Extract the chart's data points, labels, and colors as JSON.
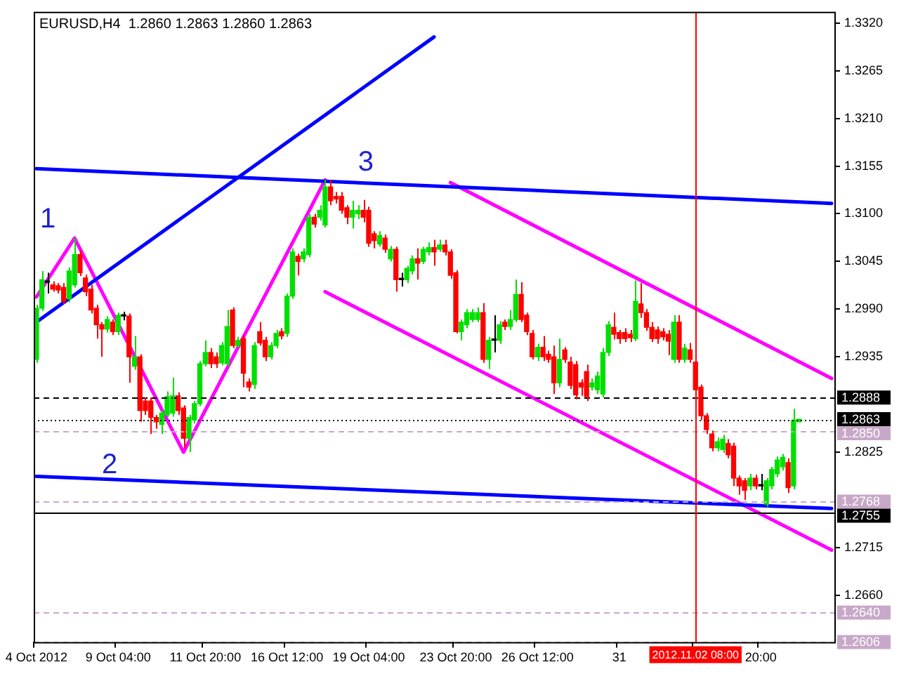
{
  "chart_data": {
    "type": "candlestick",
    "title": "EURUSD,H4  1.2860 1.2863 1.2860 1.2863",
    "categories": [
      "4 Oct 2012",
      null,
      null,
      null,
      null,
      null,
      null,
      null,
      null,
      null,
      null,
      null,
      null,
      null,
      null,
      "9 Oct 04:00",
      null,
      null,
      null,
      null,
      null,
      null,
      null,
      null,
      null,
      null,
      null,
      null,
      null,
      null,
      null,
      "11 Oct 20:00",
      null,
      null,
      null,
      null,
      null,
      null,
      null,
      null,
      null,
      null,
      null,
      null,
      null,
      null,
      "16 Oct 12:00",
      null,
      null,
      null,
      null,
      null,
      null,
      null,
      null,
      null,
      null,
      null,
      null,
      null,
      null,
      "19 Oct 04:00",
      null,
      null,
      null,
      null,
      null,
      null,
      null,
      null,
      null,
      null,
      null,
      null,
      null,
      null,
      null,
      "23 Oct 20:00",
      null,
      null,
      null,
      null,
      null,
      null,
      null,
      null,
      null,
      null,
      null,
      null,
      null,
      null,
      "26 Oct 12:00",
      null,
      null,
      null,
      null,
      null,
      null,
      null,
      null,
      null,
      null,
      null,
      null,
      null,
      null,
      "31",
      null,
      null,
      null,
      null,
      null,
      null,
      null,
      null,
      null,
      null,
      null,
      null,
      null,
      "2012.11.02 08:00",
      null,
      null,
      null,
      null,
      null,
      null,
      null,
      null,
      null,
      null,
      null,
      "20:00",
      null,
      null,
      null,
      null,
      null,
      null,
      null,
      null,
      null,
      null,
      null,
      null,
      null
    ],
    "ohlc": [
      [
        1.2932,
        1.2995,
        1.2928,
        1.2991
      ],
      [
        1.2991,
        1.3034,
        1.2988,
        1.3024
      ],
      [
        1.3021,
        1.3032,
        1.3008,
        1.3021
      ],
      [
        1.3018,
        1.3022,
        1.301,
        1.3013
      ],
      [
        1.3017,
        1.302,
        1.3008,
        1.3012
      ],
      [
        1.3015,
        1.302,
        1.2996,
        1.2999
      ],
      [
        1.3002,
        1.3038,
        1.2998,
        1.3034
      ],
      [
        1.3018,
        1.3072,
        1.3015,
        1.3053
      ],
      [
        1.3053,
        1.3058,
        1.3028,
        1.3032
      ],
      [
        1.3026,
        1.303,
        1.3005,
        1.301
      ],
      [
        1.3013,
        1.3018,
        1.2985,
        1.2989
      ],
      [
        1.2991,
        1.2995,
        1.2956,
        1.2972
      ],
      [
        1.2972,
        1.2975,
        1.2935,
        1.2967
      ],
      [
        1.2967,
        1.2982,
        1.2963,
        1.2978
      ],
      [
        1.2975,
        1.2978,
        1.296,
        1.2964
      ],
      [
        1.2964,
        1.2986,
        1.296,
        1.2983
      ],
      [
        1.2982,
        1.2987,
        1.2977,
        1.2982
      ],
      [
        1.2982,
        1.2985,
        1.2905,
        1.2935
      ],
      [
        1.2924,
        1.2959,
        1.292,
        1.2935
      ],
      [
        1.2935,
        1.2938,
        1.286,
        1.2873
      ],
      [
        1.2884,
        1.2888,
        1.2868,
        1.2873
      ],
      [
        1.2884,
        1.2888,
        1.2846,
        1.2865
      ],
      [
        1.2865,
        1.2868,
        1.2852,
        1.286
      ],
      [
        1.2857,
        1.2874,
        1.2846,
        1.287
      ],
      [
        1.2868,
        1.2895,
        1.2865,
        1.2889
      ],
      [
        1.287,
        1.2911,
        1.2866,
        1.289
      ],
      [
        1.289,
        1.2894,
        1.2868,
        1.2873
      ],
      [
        1.2876,
        1.2879,
        1.283,
        1.2841
      ],
      [
        1.2841,
        1.2868,
        1.2825,
        1.2865
      ],
      [
        1.2862,
        1.2884,
        1.2858,
        1.2881
      ],
      [
        1.2881,
        1.293,
        1.2878,
        1.2927
      ],
      [
        1.2927,
        1.2954,
        1.2924,
        1.294
      ],
      [
        1.294,
        1.2945,
        1.2922,
        1.2927
      ],
      [
        1.2935,
        1.294,
        1.2922,
        1.2927
      ],
      [
        1.2928,
        1.2952,
        1.2925,
        1.2948
      ],
      [
        1.2927,
        1.2989,
        1.2924,
        1.297
      ],
      [
        1.2989,
        1.2992,
        1.2945,
        1.2948
      ],
      [
        1.2948,
        1.2958,
        1.2945,
        1.2954
      ],
      [
        1.2956,
        1.296,
        1.29,
        1.2916
      ],
      [
        1.2906,
        1.291,
        1.2895,
        1.29
      ],
      [
        1.2903,
        1.2952,
        1.2898,
        1.2948
      ],
      [
        1.2964,
        1.2975,
        1.2948,
        1.2951
      ],
      [
        1.2954,
        1.2958,
        1.293,
        1.2935
      ],
      [
        1.2935,
        1.2952,
        1.2932,
        1.2948
      ],
      [
        1.2948,
        1.2966,
        1.2945,
        1.2962
      ],
      [
        1.2964,
        1.2968,
        1.2955,
        1.2959
      ],
      [
        1.2962,
        1.3008,
        1.2958,
        1.3005
      ],
      [
        1.3005,
        1.306,
        1.3002,
        1.3056
      ],
      [
        1.3051,
        1.3054,
        1.3029,
        1.3045
      ],
      [
        1.3048,
        1.306,
        1.3044,
        1.3056
      ],
      [
        1.3053,
        1.31,
        1.305,
        1.3096
      ],
      [
        1.3096,
        1.31,
        1.3084,
        1.3088
      ],
      [
        1.3096,
        1.311,
        1.3092,
        1.3104
      ],
      [
        1.3087,
        1.3139,
        1.3084,
        1.3131
      ],
      [
        1.3131,
        1.3139,
        1.311,
        1.3115
      ],
      [
        1.312,
        1.3125,
        1.3112,
        1.3117
      ],
      [
        1.312,
        1.3125,
        1.31,
        1.3104
      ],
      [
        1.3107,
        1.311,
        1.3088,
        1.3096
      ],
      [
        1.3096,
        1.3115,
        1.3083,
        1.3104
      ],
      [
        1.31,
        1.311,
        1.3094,
        1.3104
      ],
      [
        1.3104,
        1.3116,
        1.309,
        1.3096
      ],
      [
        1.3104,
        1.3108,
        1.3062,
        1.3066
      ],
      [
        1.3077,
        1.308,
        1.306,
        1.3069
      ],
      [
        1.3065,
        1.308,
        1.3062,
        1.3075
      ],
      [
        1.3072,
        1.3076,
        1.3055,
        1.3059
      ],
      [
        1.3048,
        1.3063,
        1.3045,
        1.3059
      ],
      [
        1.3059,
        1.3062,
        1.301,
        1.3024
      ],
      [
        1.3024,
        1.3032,
        1.3016,
        1.3024
      ],
      [
        1.3024,
        1.304,
        1.302,
        1.3037
      ],
      [
        1.3034,
        1.3052,
        1.303,
        1.3048
      ],
      [
        1.3048,
        1.306,
        1.3024,
        1.3043
      ],
      [
        1.3045,
        1.3062,
        1.3042,
        1.3059
      ],
      [
        1.3056,
        1.3067,
        1.3052,
        1.3061
      ],
      [
        1.3061,
        1.307,
        1.304,
        1.3056
      ],
      [
        1.3059,
        1.307,
        1.3056,
        1.3064
      ],
      [
        1.3064,
        1.307,
        1.3052,
        1.3056
      ],
      [
        1.3056,
        1.3059,
        1.3025,
        1.3029
      ],
      [
        1.3032,
        1.3035,
        1.2962,
        1.2964
      ],
      [
        1.2964,
        1.2978,
        1.2954,
        1.2975
      ],
      [
        1.2972,
        1.299,
        1.2968,
        1.2986
      ],
      [
        1.2978,
        1.299,
        1.2975,
        1.2986
      ],
      [
        1.2978,
        1.2992,
        1.2975,
        1.2986
      ],
      [
        1.2986,
        1.2997,
        1.2928,
        1.2932
      ],
      [
        1.2932,
        1.2958,
        1.2921,
        1.2954
      ],
      [
        1.2954,
        1.2983,
        1.294,
        1.2954
      ],
      [
        1.2954,
        1.2976,
        1.295,
        1.2972
      ],
      [
        1.2975,
        1.2978,
        1.2966,
        1.297
      ],
      [
        1.297,
        1.2989,
        1.2966,
        1.2978
      ],
      [
        1.2978,
        1.3024,
        1.2975,
        1.3007
      ],
      [
        1.3007,
        1.3021,
        1.2975,
        1.2978
      ],
      [
        1.2983,
        1.2986,
        1.296,
        1.2964
      ],
      [
        1.2962,
        1.2966,
        1.2932,
        1.2935
      ],
      [
        1.2935,
        1.295,
        1.293,
        1.2946
      ],
      [
        1.2946,
        1.2959,
        1.293,
        1.2935
      ],
      [
        1.2938,
        1.2942,
        1.2928,
        1.2932
      ],
      [
        1.2935,
        1.2948,
        1.2892,
        1.2905
      ],
      [
        1.2905,
        1.2956,
        1.29,
        1.2932
      ],
      [
        1.2943,
        1.2946,
        1.2928,
        1.2932
      ],
      [
        1.2929,
        1.2935,
        1.2898,
        1.2902
      ],
      [
        1.2926,
        1.293,
        1.2886,
        1.2891
      ],
      [
        1.2905,
        1.2909,
        1.289,
        1.29
      ],
      [
        1.2918,
        1.2926,
        1.2884,
        1.2889
      ],
      [
        1.29,
        1.291,
        1.2896,
        1.2905
      ],
      [
        1.2897,
        1.2918,
        1.2892,
        1.2913
      ],
      [
        1.2892,
        1.2945,
        1.2888,
        1.294
      ],
      [
        1.294,
        1.2976,
        1.2936,
        1.2972
      ],
      [
        1.2969,
        1.2986,
        1.2955,
        1.2961
      ],
      [
        1.2963,
        1.2966,
        1.295,
        1.2956
      ],
      [
        1.2963,
        1.2968,
        1.2952,
        1.2956
      ],
      [
        1.2961,
        1.2966,
        1.2952,
        1.2957
      ],
      [
        1.2956,
        1.3023,
        1.2953,
        1.2999
      ],
      [
        1.2996,
        1.302,
        1.298,
        1.2986
      ],
      [
        1.2986,
        1.299,
        1.2965,
        1.2969
      ],
      [
        1.2969,
        1.2975,
        1.2952,
        1.2956
      ],
      [
        1.2966,
        1.297,
        1.295,
        1.2956
      ],
      [
        1.2964,
        1.2968,
        1.2954,
        1.2958
      ],
      [
        1.2961,
        1.2966,
        1.2937,
        1.2953
      ],
      [
        1.2932,
        1.2983,
        1.2928,
        1.2975
      ],
      [
        1.2975,
        1.2983,
        1.2928,
        1.2932
      ],
      [
        1.2932,
        1.295,
        1.2928,
        1.2945
      ],
      [
        1.2943,
        1.2951,
        1.2928,
        1.2932
      ],
      [
        1.2929,
        1.2932,
        1.2892,
        1.2897
      ],
      [
        1.29,
        1.2903,
        1.2862,
        1.2867
      ],
      [
        1.2867,
        1.287,
        1.2846,
        1.2851
      ],
      [
        1.2846,
        1.285,
        1.2826,
        1.283
      ],
      [
        1.283,
        1.2842,
        1.2826,
        1.2837
      ],
      [
        1.2828,
        1.2845,
        1.2824,
        1.284
      ],
      [
        1.2835,
        1.284,
        1.2818,
        1.2822
      ],
      [
        1.2832,
        1.2836,
        1.2786,
        1.2795
      ],
      [
        1.2795,
        1.2798,
        1.2776,
        1.2786
      ],
      [
        1.2792,
        1.2795,
        1.277,
        1.2781
      ],
      [
        1.2786,
        1.28,
        1.2781,
        1.2795
      ],
      [
        1.2795,
        1.2799,
        1.2782,
        1.2786
      ],
      [
        1.2786,
        1.28,
        1.2781,
        1.2786
      ],
      [
        1.2765,
        1.2795,
        1.2762,
        1.2792
      ],
      [
        1.2786,
        1.2808,
        1.2782,
        1.2805
      ],
      [
        1.28,
        1.282,
        1.2796,
        1.2816
      ],
      [
        1.2808,
        1.2823,
        1.2804,
        1.2819
      ],
      [
        1.2813,
        1.2818,
        1.2778,
        1.2784
      ],
      [
        1.2786,
        1.2875,
        1.2782,
        1.2862
      ],
      [
        1.286,
        1.2863,
        1.286,
        1.2863
      ],
      null,
      null,
      null,
      null,
      null,
      null
    ],
    "series": [
      {
        "type": "line",
        "color": "#0000ff",
        "values": [
          1.2975,
          null,
          null,
          null,
          null,
          null,
          null,
          null,
          null,
          null,
          null,
          null,
          null,
          null,
          null,
          null,
          null,
          null,
          null,
          null,
          null,
          null,
          null,
          null,
          null,
          null,
          null,
          null,
          null,
          null,
          null,
          null,
          null,
          null,
          null,
          null,
          null,
          null,
          null,
          null,
          null,
          null,
          null,
          null,
          null,
          null,
          null,
          null,
          null,
          null,
          null,
          null,
          null,
          null,
          null,
          null,
          null,
          null,
          null,
          null,
          null,
          null,
          null,
          null,
          null,
          null,
          null,
          null,
          null,
          null,
          null,
          null,
          null,
          1.3304,
          null,
          null,
          null,
          null,
          null,
          null,
          null,
          null,
          null,
          null,
          null,
          null,
          null,
          null,
          null,
          null,
          null,
          null,
          null,
          null,
          null,
          null,
          null,
          null,
          null,
          null,
          null,
          null,
          null,
          null,
          null,
          null,
          null,
          null,
          null,
          null,
          null,
          null,
          null,
          null,
          null,
          null,
          null,
          null,
          null,
          null,
          null,
          null,
          null,
          null,
          null,
          null,
          null,
          null,
          null,
          null,
          null,
          null,
          null,
          null,
          null,
          null,
          null,
          null,
          null,
          null,
          null,
          null,
          null,
          null,
          null,
          null,
          null
        ]
      },
      {
        "type": "line",
        "color": "#0000ff",
        "values": [
          1.3152,
          null,
          null,
          null,
          null,
          null,
          null,
          null,
          null,
          null,
          null,
          null,
          null,
          null,
          null,
          null,
          null,
          null,
          null,
          null,
          null,
          null,
          null,
          null,
          null,
          null,
          null,
          null,
          null,
          null,
          null,
          null,
          null,
          null,
          null,
          null,
          null,
          null,
          null,
          null,
          null,
          null,
          null,
          null,
          null,
          null,
          null,
          null,
          null,
          null,
          null,
          null,
          null,
          null,
          null,
          null,
          null,
          null,
          null,
          null,
          null,
          null,
          null,
          null,
          null,
          null,
          null,
          null,
          null,
          null,
          null,
          null,
          null,
          null,
          null,
          null,
          null,
          null,
          null,
          null,
          null,
          null,
          null,
          null,
          null,
          null,
          null,
          null,
          null,
          null,
          null,
          null,
          null,
          null,
          null,
          null,
          null,
          null,
          null,
          null,
          null,
          null,
          null,
          null,
          null,
          null,
          null,
          null,
          null,
          null,
          null,
          null,
          null,
          null,
          null,
          null,
          null,
          null,
          null,
          null,
          null,
          null,
          null,
          null,
          null,
          null,
          null,
          null,
          null,
          null,
          null,
          null,
          null,
          null,
          null,
          null,
          null,
          null,
          null,
          null,
          null,
          null,
          null,
          null,
          null,
          null,
          1.3112
        ]
      },
      {
        "type": "line",
        "color": "#0000ff",
        "values": [
          1.2797,
          null,
          null,
          null,
          null,
          null,
          null,
          null,
          null,
          null,
          null,
          null,
          null,
          null,
          null,
          null,
          null,
          null,
          null,
          null,
          null,
          null,
          null,
          null,
          null,
          null,
          null,
          null,
          null,
          null,
          null,
          null,
          null,
          null,
          null,
          null,
          null,
          null,
          null,
          null,
          null,
          null,
          null,
          null,
          null,
          null,
          null,
          null,
          null,
          null,
          null,
          null,
          null,
          null,
          null,
          null,
          null,
          null,
          null,
          null,
          null,
          null,
          null,
          null,
          null,
          null,
          null,
          null,
          null,
          null,
          null,
          null,
          null,
          null,
          null,
          null,
          null,
          null,
          null,
          null,
          null,
          null,
          null,
          null,
          null,
          null,
          null,
          null,
          null,
          null,
          null,
          null,
          null,
          null,
          null,
          null,
          null,
          null,
          null,
          null,
          null,
          null,
          null,
          null,
          null,
          null,
          null,
          null,
          null,
          null,
          null,
          null,
          null,
          null,
          null,
          null,
          null,
          null,
          null,
          null,
          null,
          null,
          null,
          null,
          null,
          null,
          null,
          null,
          null,
          null,
          null,
          null,
          null,
          null,
          null,
          null,
          null,
          null,
          null,
          null,
          null,
          null,
          null,
          null,
          null,
          null,
          1.276
        ]
      },
      {
        "type": "line",
        "color": "#ff00ff",
        "values": [
          1.3004,
          null,
          null,
          null,
          null,
          null,
          null,
          1.3072,
          null,
          null,
          null,
          null,
          null,
          null,
          null,
          null,
          null,
          null,
          null,
          null,
          null,
          null,
          null,
          null,
          null,
          null,
          null,
          1.2825,
          null,
          null,
          null,
          null,
          null,
          null,
          null,
          null,
          null,
          null,
          null,
          null,
          null,
          null,
          null,
          null,
          null,
          null,
          null,
          null,
          null,
          null,
          null,
          null,
          null,
          1.3139,
          null,
          null,
          null,
          null,
          null,
          null,
          null,
          null,
          null,
          null,
          null,
          null,
          null,
          null,
          null,
          null,
          null,
          null,
          null,
          null,
          null,
          null,
          null,
          null,
          null,
          null,
          null,
          null,
          null,
          null,
          null,
          null,
          null,
          null,
          null,
          null,
          null,
          null,
          null,
          null,
          null,
          null,
          null,
          null,
          null,
          null,
          null,
          null,
          null,
          null,
          null,
          null,
          null,
          null,
          null,
          null,
          null,
          null,
          null,
          null,
          null,
          null,
          null,
          null,
          null,
          null,
          null,
          null,
          null,
          null,
          null,
          null,
          null,
          null,
          null,
          null,
          null,
          null,
          null,
          null,
          null,
          null,
          null,
          null,
          null,
          null,
          null,
          null,
          null,
          null,
          null,
          null,
          null
        ]
      },
      {
        "type": "line",
        "color": "#ff00ff",
        "values": [
          null,
          null,
          null,
          null,
          null,
          null,
          null,
          null,
          null,
          null,
          null,
          null,
          null,
          null,
          null,
          null,
          null,
          null,
          null,
          null,
          null,
          null,
          null,
          null,
          null,
          null,
          null,
          null,
          null,
          null,
          null,
          null,
          null,
          null,
          null,
          null,
          null,
          null,
          null,
          null,
          null,
          null,
          null,
          null,
          null,
          null,
          null,
          null,
          null,
          null,
          null,
          null,
          null,
          null,
          null,
          null,
          null,
          null,
          null,
          null,
          null,
          null,
          null,
          null,
          null,
          null,
          null,
          null,
          null,
          null,
          null,
          null,
          null,
          null,
          null,
          null,
          1.3136,
          null,
          null,
          null,
          null,
          null,
          null,
          null,
          null,
          null,
          null,
          null,
          null,
          null,
          null,
          null,
          null,
          null,
          null,
          null,
          null,
          null,
          null,
          null,
          null,
          null,
          null,
          null,
          null,
          null,
          null,
          null,
          null,
          null,
          null,
          null,
          null,
          null,
          null,
          null,
          null,
          null,
          null,
          null,
          null,
          null,
          null,
          null,
          null,
          null,
          null,
          null,
          null,
          null,
          null,
          null,
          null,
          null,
          null,
          null,
          null,
          null,
          null,
          null,
          null,
          null,
          null,
          null,
          null,
          null,
          1.291
        ]
      },
      {
        "type": "line",
        "color": "#ff00ff",
        "values": [
          null,
          null,
          null,
          null,
          null,
          null,
          null,
          null,
          null,
          null,
          null,
          null,
          null,
          null,
          null,
          null,
          null,
          null,
          null,
          null,
          null,
          null,
          null,
          null,
          null,
          null,
          null,
          null,
          null,
          null,
          null,
          null,
          null,
          null,
          null,
          null,
          null,
          null,
          null,
          null,
          null,
          null,
          null,
          null,
          null,
          null,
          null,
          null,
          null,
          null,
          null,
          null,
          null,
          1.301,
          null,
          null,
          null,
          null,
          null,
          null,
          null,
          null,
          null,
          null,
          null,
          null,
          null,
          null,
          null,
          null,
          null,
          null,
          null,
          null,
          null,
          null,
          null,
          null,
          null,
          null,
          null,
          null,
          null,
          null,
          null,
          null,
          null,
          null,
          null,
          null,
          null,
          null,
          null,
          null,
          null,
          null,
          null,
          null,
          null,
          null,
          null,
          null,
          null,
          null,
          null,
          null,
          null,
          null,
          null,
          null,
          null,
          null,
          null,
          null,
          null,
          null,
          null,
          null,
          null,
          null,
          null,
          null,
          null,
          null,
          null,
          null,
          null,
          null,
          null,
          null,
          null,
          null,
          null,
          null,
          null,
          null,
          null,
          null,
          null,
          null,
          null,
          null,
          null,
          null,
          null,
          null,
          1.2712
        ]
      }
    ],
    "ylim": [
      1.2606,
      1.3333
    ],
    "yticks": [
      {
        "value": 1.332,
        "label": "1.3320"
      },
      {
        "value": 1.3265,
        "label": "1.3265"
      },
      {
        "value": 1.321,
        "label": "1.3210"
      },
      {
        "value": 1.3155,
        "label": "1.3155"
      },
      {
        "value": 1.31,
        "label": "1.3100"
      },
      {
        "value": 1.3045,
        "label": "1.3045"
      },
      {
        "value": 1.299,
        "label": "1.2990"
      },
      {
        "value": 1.2935,
        "label": "1.2935"
      },
      {
        "value": 1.2825,
        "label": "1.2825"
      },
      {
        "value": 1.2715,
        "label": "1.2715"
      },
      {
        "value": 1.266,
        "label": "1.2660"
      }
    ],
    "ref_lines": [
      {
        "axis": "y",
        "value": 1.2888,
        "label": "1.2888",
        "color": "#000000",
        "line_style": "dashed"
      },
      {
        "axis": "y",
        "value": 1.2863,
        "label": "1.2863",
        "color": "#000000",
        "line_style": "dotted"
      },
      {
        "axis": "y",
        "value": 1.285,
        "label": "1.2850",
        "color": "#c8a8c8",
        "line_style": "dashed"
      },
      {
        "axis": "y",
        "value": 1.2768,
        "label": "1.2768",
        "color": "#c8a8c8",
        "line_style": "dashed"
      },
      {
        "axis": "y",
        "value": 1.2755,
        "label": "1.2755",
        "color": "#000000",
        "line_style": "solid"
      },
      {
        "axis": "y",
        "value": 1.264,
        "label": "1.2640",
        "color": "#c8a8c8",
        "line_style": "dashed"
      },
      {
        "axis": "y",
        "value": 1.2606,
        "label": "1.2606",
        "color": "#c8a8c8",
        "line_style": "dashed"
      },
      {
        "axis": "x",
        "value": "2012.11.02 08:00",
        "color": "#ff0000",
        "line_style": "solid"
      }
    ],
    "annotations": [
      "1",
      "2",
      "3"
    ]
  }
}
